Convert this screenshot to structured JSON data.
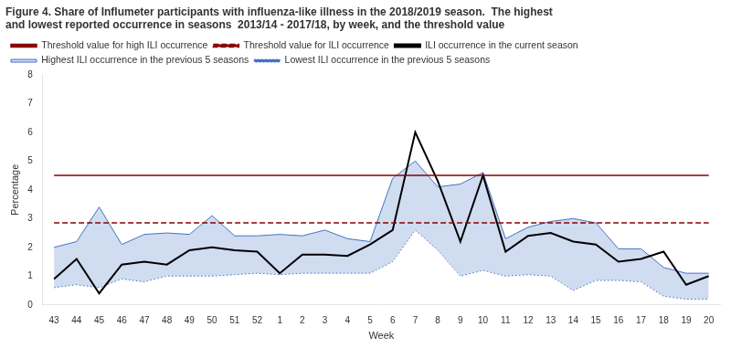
{
  "chart_data": {
    "type": "line",
    "title": [
      "Figure 4. Share of Influmeter participants with influenza-like illness in the 2018/2019 season.  The highest",
      "and lowest reported occurrence in seasons  2013/14 - 2017/18, by week, and the threshold value"
    ],
    "xlabel": "Week",
    "ylabel": "Percentage",
    "categories": [
      43,
      44,
      45,
      46,
      47,
      48,
      49,
      50,
      51,
      52,
      1,
      2,
      3,
      4,
      5,
      6,
      7,
      8,
      9,
      10,
      11,
      12,
      13,
      14,
      15,
      16,
      17,
      18,
      19,
      20
    ],
    "series": [
      {
        "name": "ILI occurrence in the current season",
        "color": "#000000",
        "line_style": "solid",
        "values": [
          0.9,
          1.6,
          0.4,
          1.4,
          1.5,
          1.4,
          1.9,
          2.0,
          1.9,
          1.85,
          1.1,
          1.75,
          1.75,
          1.7,
          2.1,
          2.6,
          6.0,
          4.3,
          2.2,
          4.5,
          1.85,
          2.4,
          2.5,
          2.2,
          2.1,
          1.5,
          1.6,
          1.85,
          0.7,
          1.0
        ]
      },
      {
        "name": "Highest ILI occurrence in the previous 5 seasons",
        "color": "#4472C4",
        "line_style": "solid",
        "values": [
          2.0,
          2.2,
          3.4,
          2.1,
          2.45,
          2.5,
          2.45,
          3.1,
          2.4,
          2.4,
          2.45,
          2.4,
          2.6,
          2.3,
          2.2,
          4.4,
          5.0,
          4.1,
          4.2,
          4.6,
          2.3,
          2.7,
          2.9,
          3.0,
          2.85,
          1.95,
          1.95,
          1.3,
          1.1,
          1.1
        ]
      },
      {
        "name": "Lowest ILI occurrence in the previous 5 seasons",
        "color": "#4472C4",
        "line_style": "dotted",
        "values": [
          0.6,
          0.7,
          0.6,
          0.9,
          0.8,
          1.0,
          1.0,
          1.0,
          1.05,
          1.1,
          1.05,
          1.1,
          1.1,
          1.1,
          1.1,
          1.5,
          2.6,
          1.9,
          1.0,
          1.2,
          1.0,
          1.05,
          1.0,
          0.5,
          0.85,
          0.85,
          0.8,
          0.3,
          0.2,
          0.2
        ]
      },
      {
        "name": "Threshold value for high ILI occurrence",
        "type": "hline",
        "value": 4.5,
        "color": "#8B0000",
        "line_style": "solid"
      },
      {
        "name": "Threshold value for ILI occurrence",
        "type": "hline",
        "value": 2.85,
        "color": "#8B0000",
        "line_style": "dashed"
      }
    ],
    "ylim": [
      0,
      8
    ],
    "yticks": [
      0,
      1,
      2,
      3,
      4,
      5,
      6,
      7,
      8
    ],
    "grid": false,
    "legend": "upper left"
  }
}
